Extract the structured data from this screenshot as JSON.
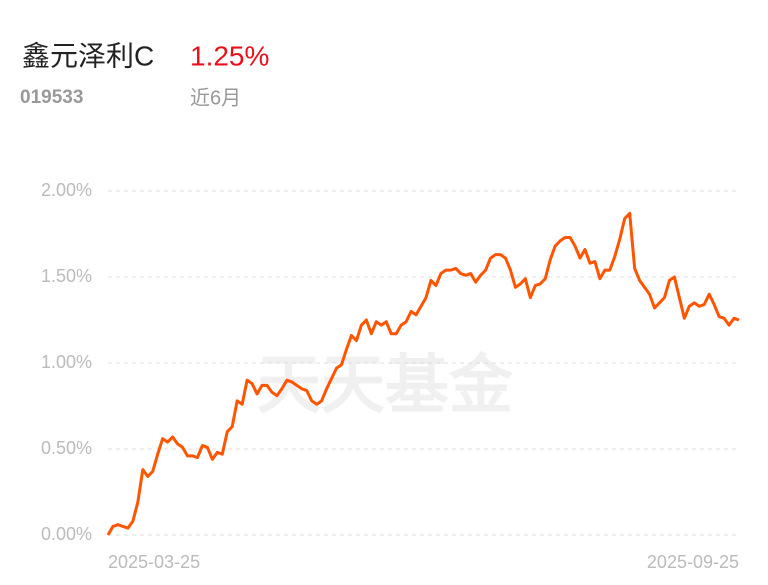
{
  "header": {
    "name": "鑫元泽利C",
    "return": "1.25%",
    "code": "019533",
    "period": "近6月"
  },
  "chart_data": {
    "type": "line",
    "watermark": "天天基金",
    "color": "#ff5500",
    "grid": true,
    "ylim": [
      0,
      2
    ],
    "yticks": [
      {
        "value": 0,
        "label": "0.00%"
      },
      {
        "value": 0.5,
        "label": "0.50%"
      },
      {
        "value": 1,
        "label": "1.00%"
      },
      {
        "value": 1.5,
        "label": "1.50%"
      },
      {
        "value": 2,
        "label": "2.00%"
      }
    ],
    "categories": [
      "2025-03-25",
      null,
      null,
      null,
      null,
      null,
      null,
      null,
      null,
      null,
      null,
      null,
      null,
      null,
      null,
      null,
      null,
      null,
      null,
      null,
      null,
      null,
      null,
      null,
      null,
      null,
      null,
      null,
      null,
      null,
      null,
      null,
      null,
      null,
      null,
      null,
      null,
      null,
      null,
      null,
      null,
      null,
      null,
      null,
      null,
      null,
      null,
      null,
      null,
      null,
      null,
      null,
      null,
      null,
      null,
      null,
      null,
      null,
      null,
      null,
      null,
      null,
      null,
      null,
      null,
      null,
      null,
      null,
      null,
      null,
      null,
      null,
      null,
      null,
      null,
      null,
      null,
      null,
      null,
      null,
      null,
      null,
      null,
      null,
      null,
      null,
      null,
      null,
      null,
      null,
      null,
      null,
      null,
      null,
      null,
      null,
      null,
      null,
      null,
      null,
      null,
      null,
      null,
      null,
      null,
      null,
      null,
      null,
      null,
      null,
      null,
      null,
      null,
      null,
      null,
      null,
      null,
      null,
      null,
      null,
      null,
      null,
      null,
      null,
      null,
      null,
      null,
      "2025-09-25"
    ],
    "values": [
      0,
      0.05,
      0.06,
      0.05,
      0.04,
      0.08,
      0.19,
      0.38,
      0.34,
      0.37,
      0.47,
      0.56,
      0.54,
      0.57,
      0.53,
      0.51,
      0.46,
      0.46,
      0.45,
      0.52,
      0.51,
      0.44,
      0.48,
      0.47,
      0.6,
      0.63,
      0.78,
      0.76,
      0.9,
      0.88,
      0.82,
      0.87,
      0.87,
      0.83,
      0.81,
      0.85,
      0.9,
      0.89,
      0.87,
      0.85,
      0.84,
      0.78,
      0.76,
      0.78,
      0.85,
      0.91,
      0.97,
      0.99,
      1.08,
      1.16,
      1.13,
      1.22,
      1.25,
      1.17,
      1.24,
      1.22,
      1.24,
      1.17,
      1.17,
      1.22,
      1.24,
      1.3,
      1.28,
      1.33,
      1.38,
      1.48,
      1.45,
      1.52,
      1.54,
      1.54,
      1.55,
      1.52,
      1.51,
      1.52,
      1.47,
      1.51,
      1.54,
      1.61,
      1.63,
      1.63,
      1.61,
      1.54,
      1.44,
      1.46,
      1.49,
      1.38,
      1.45,
      1.46,
      1.49,
      1.6,
      1.68,
      1.71,
      1.73,
      1.73,
      1.68,
      1.61,
      1.66,
      1.58,
      1.59,
      1.49,
      1.54,
      1.54,
      1.62,
      1.72,
      1.84,
      1.87,
      1.55,
      1.48,
      1.44,
      1.4,
      1.32,
      1.35,
      1.38,
      1.48,
      1.5,
      1.38,
      1.26,
      1.33,
      1.35,
      1.33,
      1.34,
      1.4,
      1.34,
      1.27,
      1.26,
      1.22,
      1.26,
      1.25
    ]
  }
}
